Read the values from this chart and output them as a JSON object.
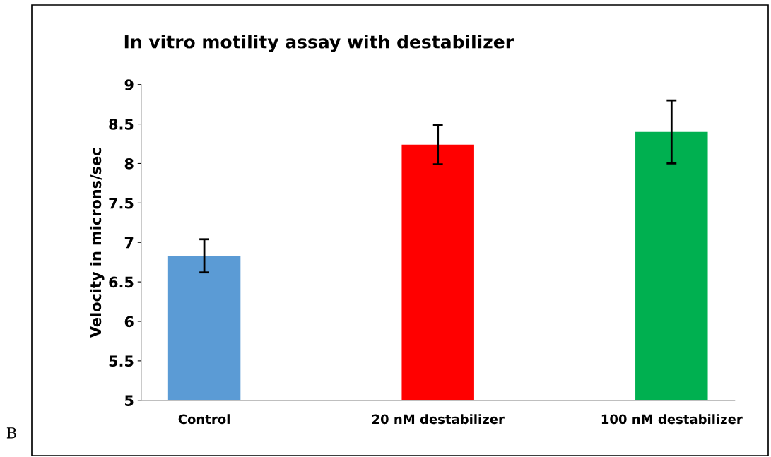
{
  "chart_data": {
    "type": "bar",
    "title": "In vitro motility assay with destabilizer",
    "ylabel": "Velocity in microns/sec",
    "categories": [
      "Control",
      "20 nM destabilizer",
      "100 nM destabilizer"
    ],
    "values": [
      6.83,
      8.24,
      8.4
    ],
    "colors": [
      "#5b9bd5",
      "#ff0000",
      "#00b050"
    ],
    "errors": [
      0.21,
      0.25,
      0.4
    ],
    "ylim": [
      5,
      9
    ],
    "yticks": [
      5,
      5.5,
      6,
      6.5,
      7,
      7.5,
      8,
      8.5,
      9
    ],
    "grid": false,
    "legend": false,
    "annotations": [
      "B"
    ]
  }
}
